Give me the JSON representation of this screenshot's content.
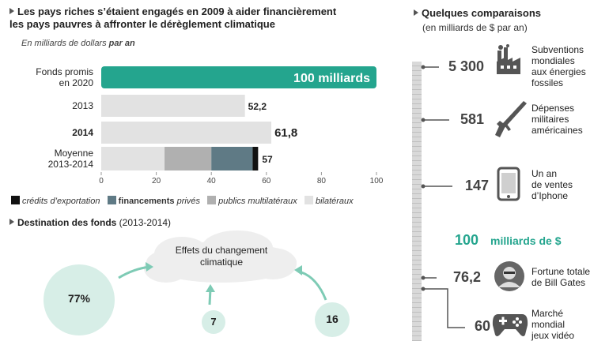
{
  "left_chart": {
    "title_line1": "Les pays riches s’étaient engagés en 2009 à aider financièrement",
    "title_line2": "les pays pauvres à affronter le dérèglement climatique",
    "subtitle_prefix": "En milliards de dollars ",
    "subtitle_bold": "par an",
    "promised_label": "100 milliards",
    "legend": [
      {
        "label": "crédits d’exportation",
        "color": "#111111"
      },
      {
        "label_bold": "financements",
        "label": " privés",
        "color": "#5f7a85"
      },
      {
        "label": "publics multilatéraux",
        "color": "#b0b0b0"
      },
      {
        "label": "bilatéraux",
        "color": "#e2e2e2"
      }
    ]
  },
  "chart_data": [
    {
      "type": "bar",
      "orientation": "horizontal",
      "title": "Les pays riches s’étaient engagés en 2009 à aider financièrement les pays pauvres à affronter le dérèglement climatique",
      "xlabel": "En milliards de dollars par an",
      "xlim": [
        0,
        100
      ],
      "xticks": [
        0,
        20,
        40,
        60,
        80,
        100
      ],
      "categories": [
        "Fonds promis en 2020",
        "2013",
        "2014",
        "Moyenne 2013-2014"
      ],
      "values": [
        100,
        52.2,
        61.8,
        57
      ],
      "value_labels": [
        "100 milliards",
        "52,2",
        "61,8",
        "57"
      ],
      "stacked_last": [
        {
          "name": "bilatéraux",
          "value": 23
        },
        {
          "name": "publics multilatéraux",
          "value": 17
        },
        {
          "name": "financements privés",
          "value": 15
        },
        {
          "name": "crédits d’exportation",
          "value": 2
        }
      ],
      "colors": {
        "promised": "#24a58e",
        "bars": "#e2e2e2"
      }
    },
    {
      "type": "bubble",
      "title": "Destination des fonds (2013-2014)",
      "center_label": "Effets du changement climatique",
      "values": [
        77,
        7,
        16
      ],
      "value_labels": [
        "77%",
        "7",
        "16"
      ]
    },
    {
      "type": "scale",
      "title": "Quelques comparaisons",
      "subtitle": "(en milliards de $ par an)",
      "items": [
        {
          "value": 5300,
          "label": "5 300",
          "desc": "Subventions mondiales aux énergies fossiles",
          "icon": "factory-icon"
        },
        {
          "value": 581,
          "label": "581",
          "desc": "Dépenses militaires américaines",
          "icon": "rifle-icon"
        },
        {
          "value": 147,
          "label": "147",
          "desc": "Un an de ventes d’Iphone",
          "icon": "smartphone-icon"
        },
        {
          "value": 100,
          "label": "100",
          "desc": "milliards de $",
          "highlight": true
        },
        {
          "value": 76.2,
          "label": "76,2",
          "desc": "Fortune totale de Bill Gates",
          "icon": "portrait-icon"
        },
        {
          "value": 60,
          "label": "60",
          "desc": "Marché mondial jeux vidéo",
          "icon": "gamepad-icon"
        }
      ]
    }
  ],
  "destination": {
    "title_bold": "Destination des fonds",
    "title_rest": " (2013-2014)",
    "cloud_line1": "Effets du changement",
    "cloud_line2": "climatique",
    "big": "77%",
    "small1": "7",
    "small2": "16"
  },
  "right_panel": {
    "title": "Quelques comparaisons",
    "subtitle": "(en milliards de $ par an)",
    "desc_lines": [
      [
        "Subventions",
        "mondiales",
        "aux énergies",
        "fossiles"
      ],
      [
        "Dépenses",
        "militaires",
        "américaines"
      ],
      [
        "Un an",
        "de ventes",
        "d’Iphone"
      ],
      [
        "milliards de $"
      ],
      [
        "Fortune totale",
        "de Bill Gates"
      ],
      [
        "Marché",
        "mondial",
        "jeux vidéo"
      ]
    ]
  },
  "colors": {
    "accent": "#24a58e",
    "bar": "#e2e2e2",
    "dark": "#111111",
    "private": "#5f7a85",
    "multi": "#b0b0b0",
    "circle": "#d7eee7"
  }
}
